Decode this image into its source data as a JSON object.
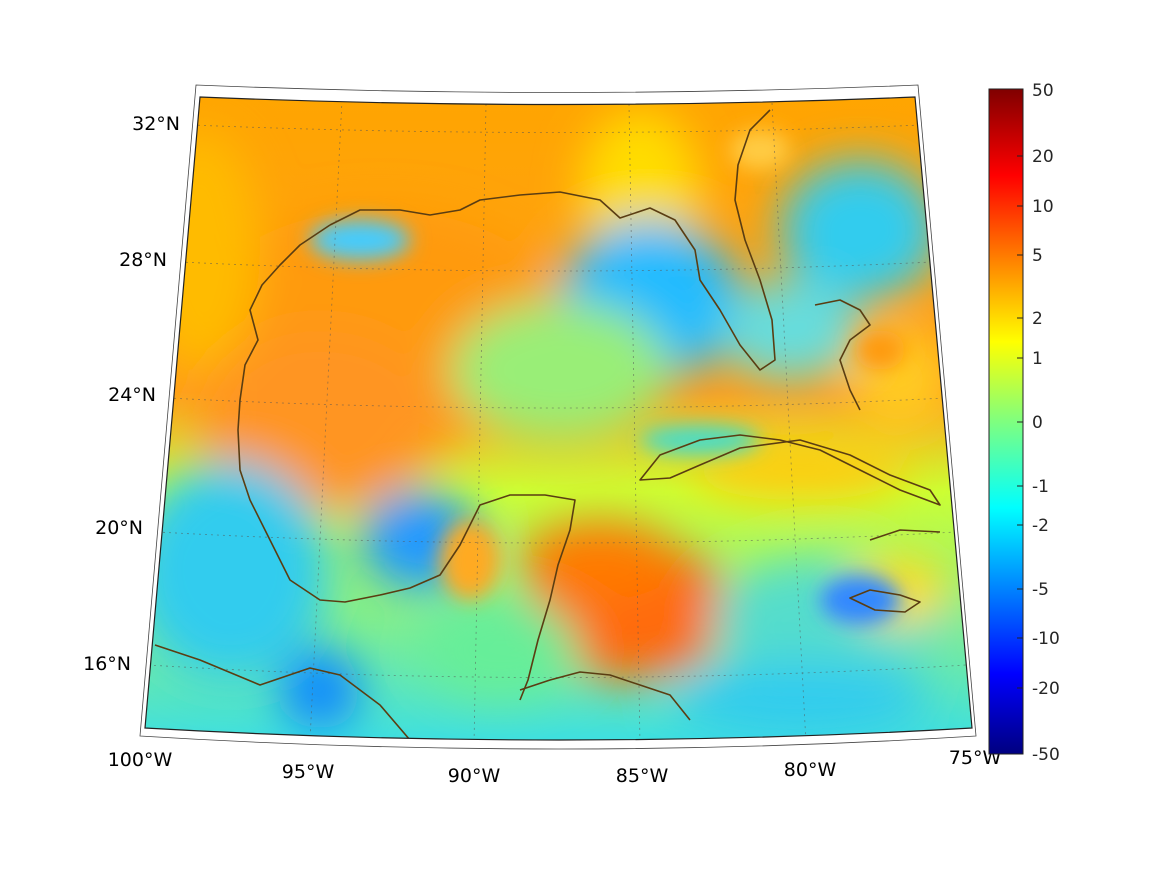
{
  "map": {
    "projection": "conic",
    "lon_range": [
      -100,
      -75
    ],
    "lat_range": [
      14,
      33
    ],
    "latitude_labels": [
      "32°N",
      "28°N",
      "24°N",
      "20°N",
      "16°N"
    ],
    "longitude_labels": [
      "100°W",
      "95°W",
      "90°W",
      "85°W",
      "80°W",
      "75°W"
    ],
    "grid": "dotted",
    "coastline_color": "#5a3d12"
  },
  "colorbar": {
    "colormap": "jet",
    "tick_labels": [
      "50",
      "20",
      "10",
      "5",
      "2",
      "1",
      "0",
      "-1",
      "-2",
      "-5",
      "-10",
      "-20",
      "-50"
    ],
    "colors": [
      "#000080",
      "#0000ff",
      "#00ffff",
      "#ffff00",
      "#ff0000",
      "#800000"
    ]
  }
}
